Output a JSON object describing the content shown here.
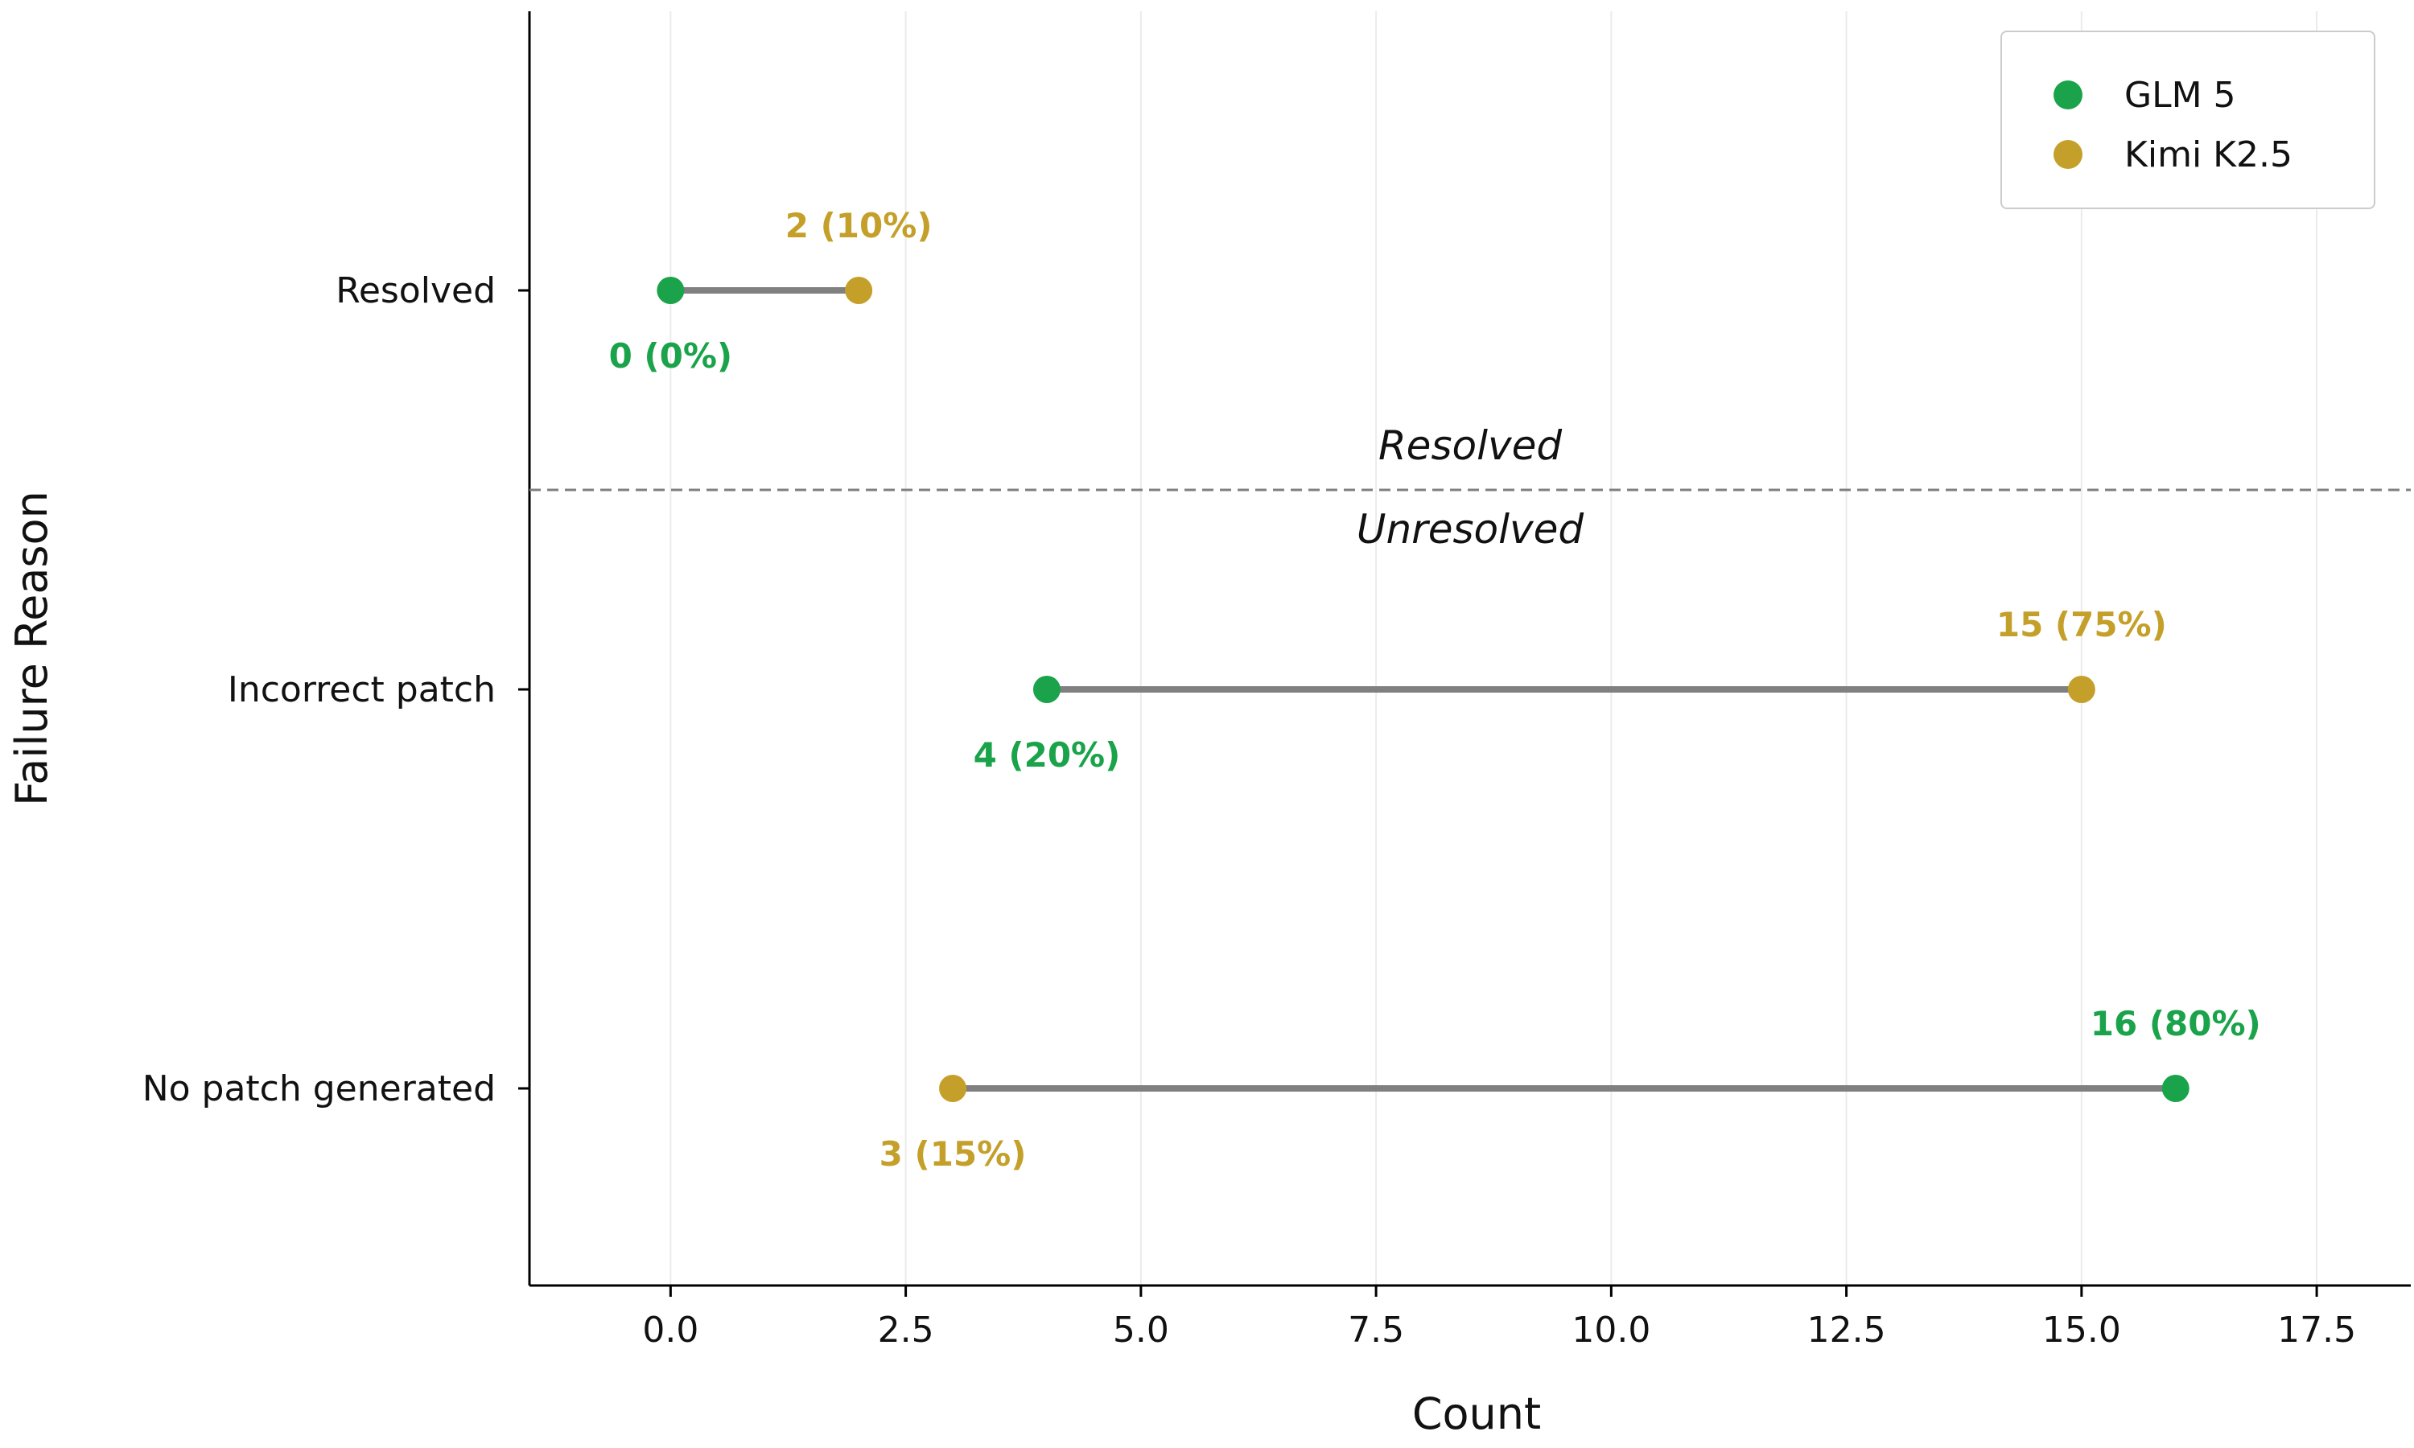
{
  "chart_data": {
    "type": "dumbbell",
    "title": "",
    "xlabel": "Count",
    "ylabel": "Failure Reason",
    "xlim": [
      -1.5,
      18.5
    ],
    "xticks": [
      "0.0",
      "2.5",
      "5.0",
      "7.5",
      "10.0",
      "12.5",
      "15.0",
      "17.5"
    ],
    "xtick_values": [
      0,
      2.5,
      5,
      7.5,
      10,
      12.5,
      15,
      17.5
    ],
    "categories": [
      "Resolved",
      "Incorrect patch",
      "No patch generated"
    ],
    "grid": "vertical",
    "legend_position": "top-right",
    "series": [
      {
        "name": "GLM 5",
        "color": "#1aa34a",
        "values": [
          0,
          4,
          16
        ],
        "labels": [
          "0 (0%)",
          "4 (20%)",
          "16 (80%)"
        ]
      },
      {
        "name": "Kimi K2.5",
        "color": "#c4a02a",
        "values": [
          2,
          15,
          3
        ],
        "labels": [
          "2 (10%)",
          "15 (75%)",
          "3 (15%)"
        ]
      }
    ],
    "separator": {
      "above_label": "Resolved",
      "below_label": "Unresolved"
    }
  }
}
